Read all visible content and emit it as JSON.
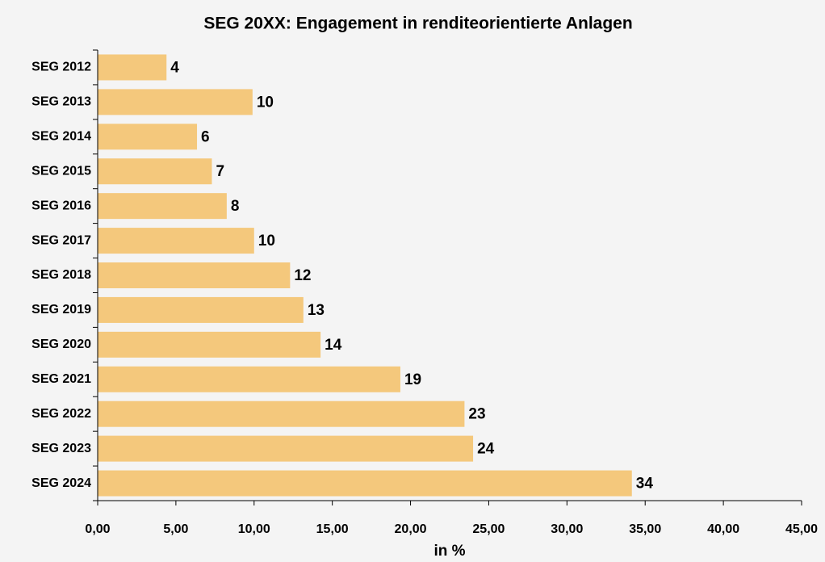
{
  "chart_data": {
    "type": "barh",
    "title": "SEG 20XX: Engagement in renditeorientierte Anlagen",
    "xlabel": "in %",
    "categories": [
      "SEG 2012",
      "SEG 2013",
      "SEG 2014",
      "SEG 2015",
      "SEG 2016",
      "SEG 2017",
      "SEG 2018",
      "SEG 2019",
      "SEG 2020",
      "SEG 2021",
      "SEG 2022",
      "SEG 2023",
      "SEG 2024"
    ],
    "values": [
      4.4,
      9.9,
      6.35,
      7.3,
      8.25,
      10.0,
      12.3,
      13.15,
      14.25,
      19.35,
      23.45,
      24.0,
      34.15
    ],
    "value_labels": [
      "4",
      "10",
      "6",
      "7",
      "8",
      "10",
      "12",
      "13",
      "14",
      "19",
      "23",
      "24",
      "34"
    ],
    "color": "#f4c87c",
    "xlim": [
      0,
      45
    ],
    "xticks": [
      {
        "value": 0,
        "label": "0,00"
      },
      {
        "value": 5,
        "label": "5,00"
      },
      {
        "value": 10,
        "label": "10,00"
      },
      {
        "value": 15,
        "label": "15,00"
      },
      {
        "value": 20,
        "label": "20,00"
      },
      {
        "value": 25,
        "label": "25,00"
      },
      {
        "value": 30,
        "label": "30,00"
      },
      {
        "value": 35,
        "label": "35,00"
      },
      {
        "value": 40,
        "label": "40,00"
      },
      {
        "value": 45,
        "label": "45,00"
      }
    ]
  }
}
